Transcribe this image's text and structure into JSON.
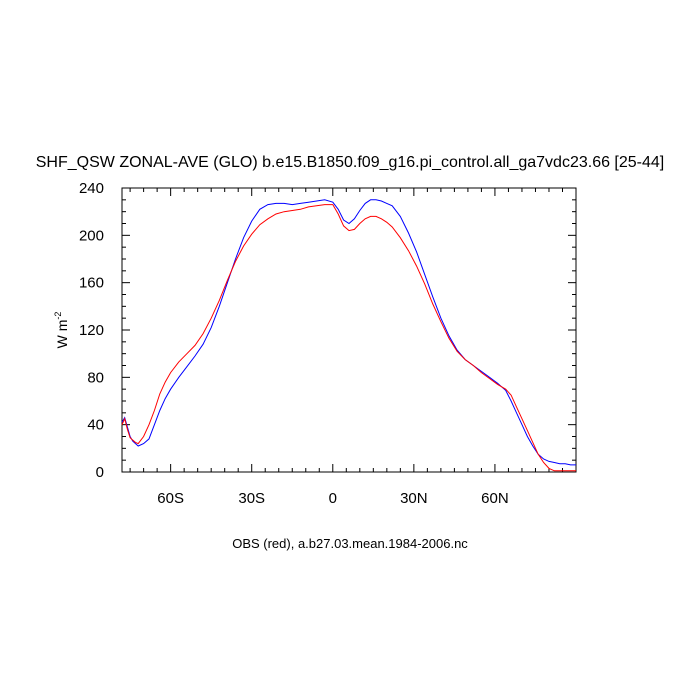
{
  "chart_data": {
    "type": "line",
    "title": "SHF_QSW ZONAL-AVE (GLO) b.e15.B1850.f09_g16.pi_control.all_ga7vdc23.66 [25-44]",
    "ylabel": "W m",
    "ylabel_superscript": "-2",
    "caption": "OBS (red), a.b27.03.mean.1984-2006.nc",
    "xlim": [
      -78,
      90
    ],
    "ylim": [
      0,
      240
    ],
    "grid": false,
    "x_ticks": [
      {
        "value": -60,
        "label": "60S"
      },
      {
        "value": -30,
        "label": "30S"
      },
      {
        "value": 0,
        "label": "0"
      },
      {
        "value": 30,
        "label": "30N"
      },
      {
        "value": 60,
        "label": "60N"
      }
    ],
    "y_ticks": [
      {
        "value": 0,
        "label": "0"
      },
      {
        "value": 40,
        "label": "40"
      },
      {
        "value": 80,
        "label": "80"
      },
      {
        "value": 120,
        "label": "120"
      },
      {
        "value": 160,
        "label": "160"
      },
      {
        "value": 200,
        "label": "200"
      },
      {
        "value": 240,
        "label": "240"
      }
    ],
    "series": [
      {
        "color": "#0000ff",
        "x": [
          -78,
          -77,
          -76,
          -75,
          -74,
          -73,
          -72,
          -70,
          -68,
          -66,
          -64,
          -62,
          -60,
          -57,
          -54,
          -51,
          -48,
          -45,
          -42,
          -39,
          -36,
          -33,
          -30,
          -27,
          -24,
          -21,
          -18,
          -15,
          -12,
          -9,
          -6,
          -3,
          0,
          2,
          4,
          6,
          8,
          10,
          12,
          14,
          16,
          18,
          20,
          22,
          25,
          28,
          31,
          34,
          37,
          40,
          43,
          46,
          49,
          52,
          55,
          58,
          61,
          64,
          66,
          68,
          70,
          72,
          74,
          76,
          78,
          80,
          82,
          84,
          86,
          88,
          90
        ],
        "y": [
          42,
          46,
          38,
          30,
          26,
          24,
          22,
          24,
          28,
          40,
          52,
          62,
          70,
          80,
          89,
          98,
          108,
          122,
          140,
          160,
          180,
          198,
          212,
          222,
          226,
          227,
          227,
          226,
          227,
          228,
          229,
          230,
          228,
          222,
          213,
          210,
          214,
          221,
          227,
          230,
          230,
          229,
          227,
          225,
          216,
          202,
          186,
          167,
          148,
          130,
          115,
          103,
          95,
          90,
          85,
          80,
          75,
          69,
          60,
          50,
          40,
          30,
          22,
          15,
          11,
          9,
          8,
          7,
          7,
          6,
          6
        ]
      },
      {
        "color": "#ff0000",
        "x": [
          -78,
          -77,
          -76,
          -75,
          -74,
          -73,
          -72,
          -70,
          -68,
          -66,
          -64,
          -62,
          -60,
          -57,
          -54,
          -51,
          -48,
          -45,
          -42,
          -39,
          -36,
          -33,
          -30,
          -27,
          -24,
          -21,
          -18,
          -15,
          -12,
          -9,
          -6,
          -3,
          0,
          2,
          4,
          6,
          8,
          10,
          12,
          14,
          16,
          18,
          20,
          22,
          25,
          28,
          31,
          34,
          37,
          40,
          43,
          46,
          49,
          52,
          55,
          58,
          61,
          64,
          66,
          68,
          70,
          72,
          74,
          76,
          78,
          80,
          82,
          84,
          86,
          88,
          90
        ],
        "y": [
          40,
          45,
          36,
          29,
          27,
          25,
          24,
          30,
          40,
          52,
          66,
          76,
          84,
          93,
          100,
          107,
          117,
          130,
          145,
          162,
          178,
          191,
          201,
          209,
          214,
          218,
          220,
          221,
          222,
          224,
          225,
          226,
          226,
          218,
          208,
          204,
          205,
          210,
          214,
          216,
          216,
          214,
          211,
          207,
          198,
          187,
          174,
          159,
          142,
          127,
          113,
          102,
          95,
          90,
          84,
          79,
          74,
          70,
          65,
          55,
          45,
          35,
          25,
          15,
          8,
          3,
          1,
          1,
          1,
          1,
          1
        ]
      }
    ]
  }
}
